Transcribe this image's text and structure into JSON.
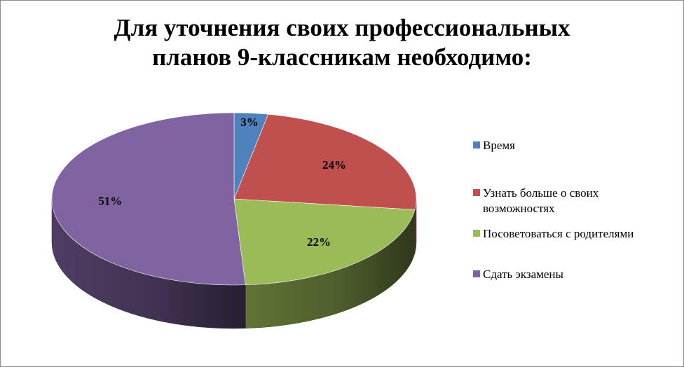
{
  "title_lines": [
    "Для уточнения своих профессиональных",
    "планов 9-классникам необходимо:"
  ],
  "chart_data": {
    "type": "pie",
    "title": "Для уточнения своих профессиональных планов 9-классникам необходимо:",
    "style": "3d",
    "legend_position": "right",
    "categories": [
      "Время",
      "Узнать больше о своих возможностях",
      "Посоветоваться с родителями",
      "Сдать экзамены"
    ],
    "values": [
      3,
      24,
      22,
      51
    ],
    "labels": [
      "3%",
      "24%",
      "22%",
      "51%"
    ],
    "colors": [
      "#4f81bd",
      "#c0504d",
      "#9bbb59",
      "#8064a2"
    ]
  },
  "legend": [
    {
      "label_lines": [
        "Время"
      ]
    },
    {
      "label_lines": [
        "Узнать больше о своих",
        "возможностях"
      ]
    },
    {
      "label_lines": [
        "Посоветоваться с родителями"
      ]
    },
    {
      "label_lines": [
        "Сдать экзамены"
      ]
    }
  ]
}
